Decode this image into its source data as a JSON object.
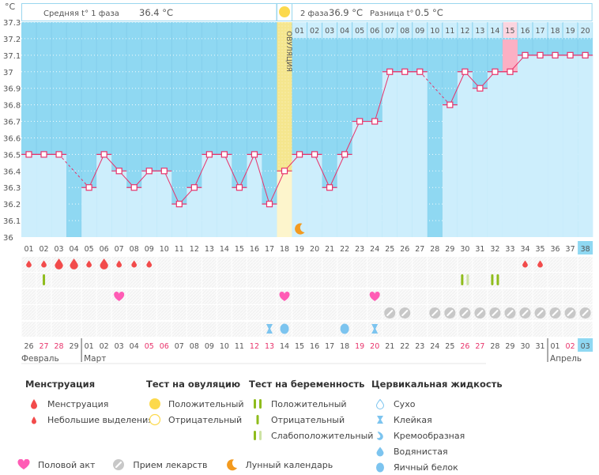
{
  "header": {
    "unit": "°C",
    "phase1_label": "Средняя t° 1 фаза",
    "phase1_value": "36.4 °C",
    "phase2_label": "2 фаза",
    "phase2_value": "36.9 °C",
    "diff_label": "Разница t°",
    "diff_value": "0.5 °C",
    "ovulation_label": "ОВУЛЯЦИЯ"
  },
  "colors": {
    "bg_low": "#8fd8f2",
    "bar": "#cdeefc",
    "line": "#e8336b",
    "ovulation": "#f7e899",
    "ovulation_bar": "#fdf5cc",
    "highlight": "#fbb0c4",
    "today": "#8fd8f2",
    "menstruation": "#f24b4b",
    "test_green": "#8fbc1c",
    "test_green_light": "#cde3a3",
    "heart": "#ff5cb5",
    "pill": "#c8c8c8",
    "moon": "#f39a1f",
    "fluid": "#7cc4ef",
    "red_date": "#e8336b"
  },
  "chart_data": {
    "type": "line",
    "title": "",
    "ylabel": "°C",
    "ylim": [
      36,
      37.3
    ],
    "yticks": [
      "36",
      "36.1",
      "36.2",
      "36.3",
      "36.4",
      "36.5",
      "36.6",
      "36.7",
      "36.8",
      "36.9",
      "37",
      "37.1",
      "37.2",
      "37.3"
    ],
    "cycle_days": [
      "01",
      "02",
      "03",
      "04",
      "05",
      "06",
      "07",
      "08",
      "09",
      "10",
      "11",
      "12",
      "13",
      "14",
      "15",
      "16",
      "17",
      "18",
      "19",
      "20",
      "21",
      "22",
      "23",
      "24",
      "25",
      "26",
      "27",
      "28",
      "29",
      "30",
      "31",
      "32",
      "33",
      "34",
      "35",
      "36",
      "37",
      "38"
    ],
    "temperatures": [
      36.5,
      36.5,
      36.5,
      null,
      36.3,
      36.5,
      36.4,
      36.3,
      36.4,
      36.4,
      36.2,
      36.3,
      36.5,
      36.5,
      36.3,
      36.5,
      36.2,
      36.4,
      36.5,
      36.5,
      36.3,
      36.5,
      36.7,
      36.7,
      37.0,
      37.0,
      37.0,
      null,
      36.8,
      37.0,
      36.9,
      37.0,
      37.0,
      37.1,
      37.1,
      37.1,
      37.1,
      37.1
    ],
    "ovulation_day": 18,
    "luteal_day_labels": [
      "01",
      "02",
      "03",
      "04",
      "05",
      "06",
      "07",
      "08",
      "09",
      "10",
      "11",
      "12",
      "13",
      "14",
      "15",
      "16",
      "17",
      "18",
      "19",
      "20"
    ],
    "highlight_luteal_day": 15,
    "current_day": 38,
    "moon_day": 19,
    "calendar_dates": [
      "26",
      "27",
      "28",
      "29",
      "01",
      "02",
      "03",
      "04",
      "05",
      "06",
      "07",
      "08",
      "09",
      "10",
      "11",
      "12",
      "13",
      "14",
      "15",
      "16",
      "17",
      "18",
      "19",
      "20",
      "21",
      "22",
      "23",
      "24",
      "25",
      "26",
      "27",
      "28",
      "29",
      "30",
      "31",
      "01",
      "02",
      "03"
    ],
    "red_dates": [
      2,
      3,
      9,
      10,
      16,
      17,
      23,
      24,
      30,
      31,
      37
    ],
    "months": [
      {
        "label": "Февраль",
        "start": 1
      },
      {
        "label": "Март",
        "start": 5
      },
      {
        "label": "Апрель",
        "start": 36
      }
    ],
    "menstruation": {
      "1": "small",
      "2": "small",
      "3": "big",
      "4": "big",
      "5": "small",
      "6": "big",
      "7": "small",
      "8": "small",
      "9": "small",
      "34": "small",
      "35": "small"
    },
    "pregnancy_tests": {
      "2": "negative",
      "30": "weak",
      "32": "positive"
    },
    "intercourse": [
      7,
      18,
      24
    ],
    "medication": [
      25,
      26,
      28,
      29,
      30,
      31,
      32,
      33,
      34,
      35,
      36,
      37,
      38
    ],
    "cervical_fluid": {
      "17": "sticky",
      "18": "eggwhite",
      "22": "eggwhite",
      "24": "sticky"
    }
  },
  "legend": {
    "menstruation": {
      "title": "Менструация",
      "items": [
        "Менструация",
        "Небольшие выделения"
      ]
    },
    "ovulation_test": {
      "title": "Тест на овуляцию",
      "items": [
        "Положительный",
        "Отрицательный"
      ]
    },
    "pregnancy_test": {
      "title": "Тест на беременность",
      "items": [
        "Положительный",
        "Отрицательный",
        "Слабоположительный"
      ]
    },
    "cervical_fluid": {
      "title": "Цервикальная жидкость",
      "items": [
        "Сухо",
        "Клейкая",
        "Кремообразная",
        "Водянистая",
        "Яичный белок"
      ]
    },
    "bottom": [
      "Половой акт",
      "Прием лекарств",
      "Лунный календарь"
    ]
  }
}
